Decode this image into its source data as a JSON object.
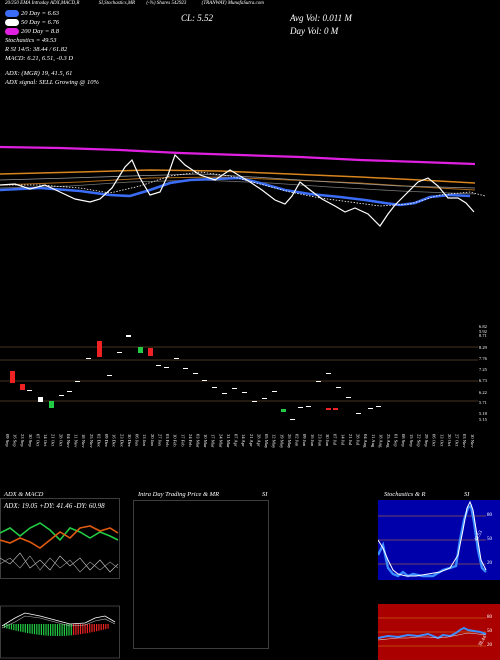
{
  "header": {
    "top_line": [
      "20/250",
      "EMA",
      "Intraday",
      "ADX,MACD,R",
      "SI,Stochastics,MR",
      "(-%) Shares",
      "542923",
      "(TRANWAY)",
      "MunafaSutra.com"
    ],
    "legend": [
      {
        "label": "20 Day = 6.63",
        "color": "#3a6cf5"
      },
      {
        "label": "50 Day = 6.76",
        "color": "#ffffff"
      },
      {
        "label": "200 Day = 8.8",
        "color": "#e020e0"
      }
    ],
    "stochastics": "Stochastics = 49.53",
    "rsi": "R        SI 14/5: 38.44  / 61.82",
    "macd": "MACD: 6.21, 6.51,  -0.3 D",
    "adx_line": "ADX:                              (MGR) 19, 41.5, 61",
    "adx_signal": "ADX  signal: SELL Growing @ 10%",
    "close": "CL: 5.52",
    "avg_vol": "Avg Vol: 0.011  M",
    "day_vol": "Day Vol: 0   M"
  },
  "dates": [
    "09 Sep",
    "16 Sep",
    "23 Sep",
    "30 Sep",
    "07 Oct",
    "14 Oct",
    "21 Oct",
    "28 Oct",
    "04 Nov",
    "11 Nov",
    "18 Nov",
    "25 Nov",
    "02 Dec",
    "09 Dec",
    "16 Dec",
    "23 Dec",
    "30 Dec",
    "06 Jan",
    "13 Jan",
    "20 Jan",
    "27 Jan",
    "03 Feb",
    "10 Feb",
    "17 Feb",
    "24 Feb",
    "03 Mar",
    "10 Mar",
    "17 Mar",
    "24 Mar",
    "31 Mar",
    "07 Apr",
    "14 Apr",
    "21 Apr",
    "28 Apr",
    "05 May",
    "12 May",
    "19 May",
    "26 May",
    "02 Jun",
    "09 Jun",
    "16 Jun",
    "23 Jun",
    "30 Jun",
    "07 Jul",
    "14 Jul",
    "21 Jul",
    "28 Jul",
    "04 Aug",
    "11 Aug",
    "18 Aug",
    "25 Aug",
    "01 Sep",
    "08 Sep",
    "15 Sep",
    "22 Sep",
    "29 Sep",
    "06 Oct",
    "13 Oct",
    "20 Oct",
    "27 Oct",
    "03 Nov",
    "10 Nov"
  ],
  "price_axis": [
    "6.82",
    "5.92",
    "8.71",
    "8.29",
    "7.76",
    "7.25",
    "6.73",
    "6.22",
    "5.71",
    "5.18",
    "5.15"
  ],
  "panels": {
    "adx": {
      "title": "ADX  & MACD",
      "values": "ADX: 19.05  +DY: 41.46  -DY: 60.98"
    },
    "intraday": {
      "title": "Intra Day Trading Price  & MR",
      "suffix": "SI"
    },
    "stoch": {
      "title": "Stochastics & R",
      "suffix": "SI",
      "ticks": [
        "80",
        "50",
        "20"
      ],
      "label": "49.53"
    },
    "rsi": {
      "ticks": [
        "80",
        "50",
        "20"
      ],
      "label": "38.44"
    }
  },
  "chart_data": {
    "type": "line",
    "title": "Shares 542923 (TRANWAY)",
    "ylim": [
      5.0,
      9.0
    ],
    "series": [
      {
        "name": "20 Day",
        "values": [
          6.63
        ]
      },
      {
        "name": "50 Day",
        "values": [
          6.76
        ]
      },
      {
        "name": "200 Day",
        "values": [
          8.8
        ]
      }
    ],
    "close": 5.52,
    "stochastics": 49.53,
    "rsi": [
      38.44,
      61.82
    ],
    "macd": [
      6.21,
      6.51,
      -0.3
    ],
    "adx": [
      19.05,
      41.46,
      60.98
    ]
  },
  "colors": {
    "bg": "#000000",
    "ma20": "#3a6cf5",
    "ma50": "#ffffff",
    "ma200": "#e020e0",
    "up": "#22cc44",
    "down": "#ee2222",
    "orange": "#d8851e",
    "rsi_bg": "#aa0000",
    "stoch_bg": "#0000aa"
  }
}
